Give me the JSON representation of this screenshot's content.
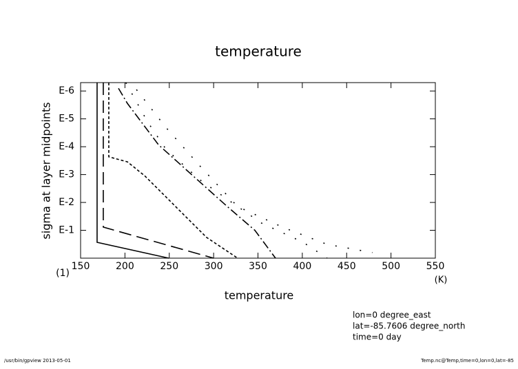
{
  "chart_data": {
    "type": "line",
    "title": "temperature",
    "x_label": "temperature",
    "x_unit": "(K)",
    "y_label": "sigma at layer midpoints",
    "xlim": [
      150,
      550
    ],
    "xticks": [
      150,
      200,
      250,
      300,
      350,
      400,
      450,
      500,
      550
    ],
    "ylim": [
      1,
      5e-07
    ],
    "y_log": true,
    "yticks": [
      {
        "value": 1,
        "label": "(1)"
      },
      {
        "value": 0.1,
        "label": "E-1"
      },
      {
        "value": 0.01,
        "label": "E-2"
      },
      {
        "value": 0.001,
        "label": "E-3"
      },
      {
        "value": 0.0001,
        "label": "E-4"
      },
      {
        "value": 1e-05,
        "label": "E-5"
      },
      {
        "value": 1e-06,
        "label": "E-6"
      }
    ],
    "series": [
      {
        "color": "#000000",
        "dash": "solid",
        "x": [
          168.6,
          168.6,
          249.4
        ],
        "y": [
          5e-07,
          0.27,
          1
        ]
      },
      {
        "color": "#000000",
        "dash": "long",
        "x": [
          175.6,
          175.6,
          300
        ],
        "y": [
          5e-07,
          0.077,
          1
        ]
      },
      {
        "color": "#000000",
        "dash": "short",
        "x": [
          181.8,
          181.8,
          202.8,
          222.2,
          245.5,
          268.8,
          292.1,
          327.1
        ],
        "y": [
          5e-07,
          0.00023,
          0.00035,
          0.0011,
          0.006,
          0.033,
          0.18,
          1
        ]
      },
      {
        "color": "#000000",
        "dash": "dashdot",
        "x": [
          192.7,
          202.8,
          237.8,
          276.6,
          315.4,
          346.5,
          369.8
        ],
        "y": [
          8e-07,
          2.8e-06,
          8.5e-05,
          0.0011,
          0.014,
          0.1,
          1
        ]
      },
      {
        "color": "#000000",
        "dash": "dot",
        "x": [
          201,
          225,
          246,
          284,
          327,
          354,
          401,
          428
        ],
        "y": [
          5e-07,
          1.2e-05,
          0.00012,
          0.0015,
          0.014,
          0.055,
          0.27,
          1
        ]
      },
      {
        "color": "#000000",
        "dash": "dot",
        "x": [
          213,
          246,
          284,
          327,
          378,
          428,
          479
        ],
        "y": [
          8.9e-07,
          2e-05,
          0.00047,
          0.014,
          0.078,
          0.32,
          0.63
        ]
      }
    ],
    "annotations": [
      "lon=0 degree_east",
      "lat=-85.7606 degree_north",
      "time=0 day"
    ],
    "footer_left": "/usr/bin/gpview  2013-05-01",
    "footer_right": "Temp.nc@Temp,time=0,lon=0,lat=-85"
  }
}
